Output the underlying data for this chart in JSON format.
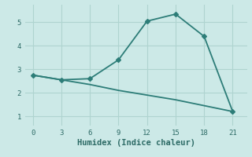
{
  "xlabel": "Humidex (Indice chaleur)",
  "background_color": "#cce9e7",
  "line_color": "#2d7d78",
  "grid_color": "#afd4d0",
  "line1_x": [
    0,
    3,
    6,
    9,
    12,
    15,
    18,
    21
  ],
  "line1_y": [
    2.75,
    2.55,
    2.6,
    3.4,
    5.05,
    5.35,
    4.4,
    1.2
  ],
  "line2_x": [
    0,
    3,
    6,
    9,
    12,
    15,
    18,
    21
  ],
  "line2_y": [
    2.75,
    2.55,
    2.35,
    2.1,
    1.9,
    1.7,
    1.45,
    1.2
  ],
  "xlim": [
    -0.8,
    22.5
  ],
  "ylim": [
    0.6,
    5.75
  ],
  "xticks": [
    0,
    3,
    6,
    9,
    12,
    15,
    18,
    21
  ],
  "yticks": [
    1,
    2,
    3,
    4,
    5
  ],
  "marker": "D",
  "markersize": 3.0,
  "linewidth": 1.3,
  "label_fontsize": 7.5,
  "tick_fontsize": 6.5
}
